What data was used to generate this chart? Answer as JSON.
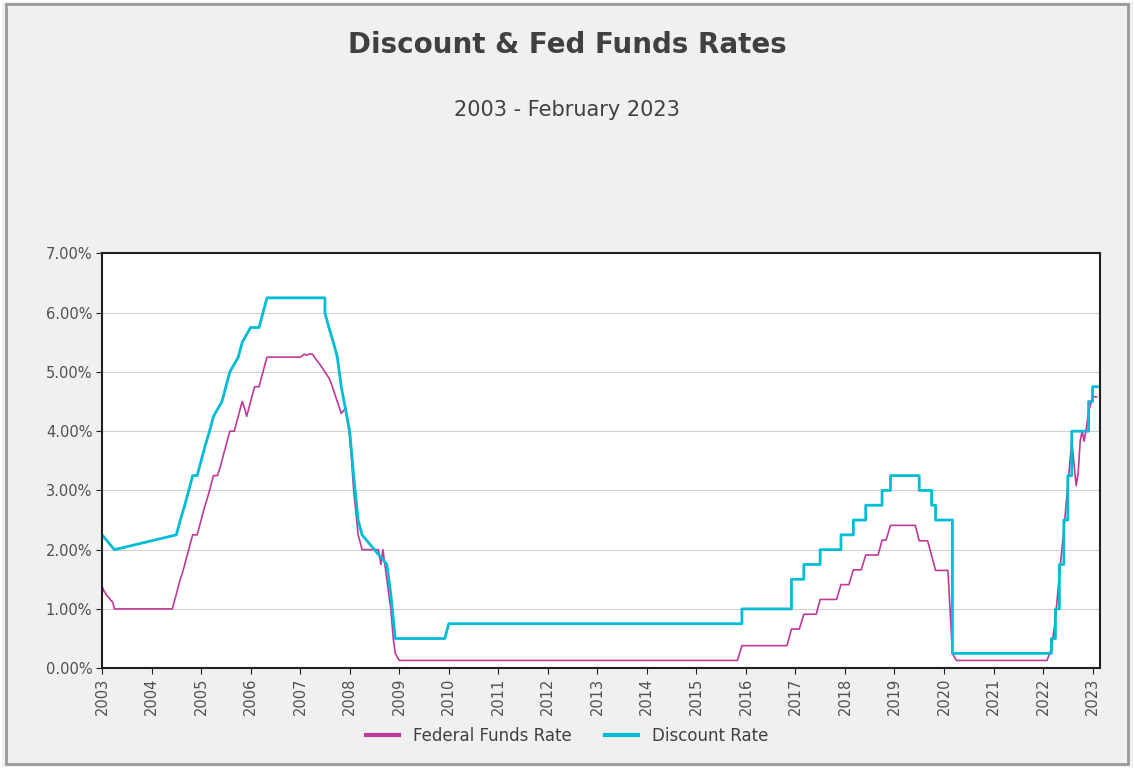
{
  "title": "Discount & Fed Funds Rates",
  "subtitle": "2003 - February 2023",
  "title_color": "#404040",
  "background_color": "#f0f0f0",
  "plot_background": "#ffffff",
  "outer_border_color": "#999999",
  "fed_funds_color": "#c0399a",
  "discount_color": "#00bcd4",
  "fed_funds_label": "Federal Funds Rate",
  "discount_label": "Discount Rate",
  "ylim": [
    0.0,
    0.07
  ],
  "yticks": [
    0.0,
    0.01,
    0.02,
    0.03,
    0.04,
    0.05,
    0.06,
    0.07
  ],
  "ytick_labels": [
    "0.00%",
    "1.00%",
    "2.00%",
    "3.00%",
    "4.00%",
    "5.00%",
    "6.00%",
    "7.00%"
  ],
  "xtick_years": [
    2003,
    2004,
    2005,
    2006,
    2007,
    2008,
    2009,
    2010,
    2011,
    2012,
    2013,
    2014,
    2015,
    2016,
    2017,
    2018,
    2019,
    2020,
    2021,
    2022,
    2023
  ],
  "fed_funds_data": [
    [
      2003.0,
      0.0125
    ],
    [
      2003.02,
      0.0135
    ],
    [
      2003.04,
      0.013
    ],
    [
      2003.06,
      0.0128
    ],
    [
      2003.08,
      0.0125
    ],
    [
      2003.1,
      0.0122
    ],
    [
      2003.13,
      0.012
    ],
    [
      2003.15,
      0.0118
    ],
    [
      2003.17,
      0.0115
    ],
    [
      2003.2,
      0.0113
    ],
    [
      2003.22,
      0.011
    ],
    [
      2003.25,
      0.01
    ],
    [
      2003.27,
      0.01
    ],
    [
      2003.29,
      0.01
    ],
    [
      2003.33,
      0.01
    ],
    [
      2003.38,
      0.01
    ],
    [
      2003.42,
      0.01
    ],
    [
      2003.46,
      0.01
    ],
    [
      2003.5,
      0.01
    ],
    [
      2003.54,
      0.01
    ],
    [
      2003.58,
      0.01
    ],
    [
      2003.62,
      0.01
    ],
    [
      2003.67,
      0.01
    ],
    [
      2003.71,
      0.01
    ],
    [
      2003.75,
      0.01
    ],
    [
      2003.79,
      0.01
    ],
    [
      2003.83,
      0.01
    ],
    [
      2003.88,
      0.01
    ],
    [
      2003.92,
      0.01
    ],
    [
      2003.96,
      0.01
    ],
    [
      2004.0,
      0.01
    ],
    [
      2004.04,
      0.01
    ],
    [
      2004.08,
      0.01
    ],
    [
      2004.13,
      0.01
    ],
    [
      2004.17,
      0.01
    ],
    [
      2004.21,
      0.01
    ],
    [
      2004.25,
      0.01
    ],
    [
      2004.29,
      0.01
    ],
    [
      2004.33,
      0.01
    ],
    [
      2004.38,
      0.01
    ],
    [
      2004.42,
      0.01
    ],
    [
      2004.46,
      0.0113
    ],
    [
      2004.5,
      0.0125
    ],
    [
      2004.54,
      0.0138
    ],
    [
      2004.58,
      0.015
    ],
    [
      2004.63,
      0.0163
    ],
    [
      2004.67,
      0.0175
    ],
    [
      2004.71,
      0.0188
    ],
    [
      2004.75,
      0.02
    ],
    [
      2004.79,
      0.0213
    ],
    [
      2004.83,
      0.0225
    ],
    [
      2004.88,
      0.0225
    ],
    [
      2004.92,
      0.0225
    ],
    [
      2005.0,
      0.025
    ],
    [
      2005.04,
      0.0263
    ],
    [
      2005.08,
      0.0275
    ],
    [
      2005.13,
      0.0288
    ],
    [
      2005.17,
      0.03
    ],
    [
      2005.21,
      0.0313
    ],
    [
      2005.25,
      0.0325
    ],
    [
      2005.29,
      0.0325
    ],
    [
      2005.33,
      0.0325
    ],
    [
      2005.38,
      0.0338
    ],
    [
      2005.42,
      0.035
    ],
    [
      2005.46,
      0.0363
    ],
    [
      2005.5,
      0.0375
    ],
    [
      2005.54,
      0.0388
    ],
    [
      2005.58,
      0.04
    ],
    [
      2005.63,
      0.04
    ],
    [
      2005.67,
      0.04
    ],
    [
      2005.71,
      0.0413
    ],
    [
      2005.75,
      0.0425
    ],
    [
      2005.79,
      0.0438
    ],
    [
      2005.83,
      0.045
    ],
    [
      2005.88,
      0.0438
    ],
    [
      2005.92,
      0.0425
    ],
    [
      2006.0,
      0.045
    ],
    [
      2006.04,
      0.0463
    ],
    [
      2006.08,
      0.0475
    ],
    [
      2006.13,
      0.0475
    ],
    [
      2006.17,
      0.0475
    ],
    [
      2006.21,
      0.0488
    ],
    [
      2006.25,
      0.05
    ],
    [
      2006.29,
      0.0513
    ],
    [
      2006.33,
      0.0525
    ],
    [
      2006.38,
      0.0525
    ],
    [
      2006.42,
      0.0525
    ],
    [
      2006.46,
      0.0525
    ],
    [
      2006.5,
      0.0525
    ],
    [
      2006.54,
      0.0525
    ],
    [
      2006.58,
      0.0525
    ],
    [
      2006.63,
      0.0525
    ],
    [
      2006.67,
      0.0525
    ],
    [
      2006.71,
      0.0525
    ],
    [
      2006.75,
      0.0525
    ],
    [
      2006.79,
      0.0525
    ],
    [
      2006.83,
      0.0525
    ],
    [
      2006.88,
      0.0525
    ],
    [
      2006.92,
      0.0525
    ],
    [
      2007.0,
      0.0525
    ],
    [
      2007.04,
      0.0527
    ],
    [
      2007.08,
      0.053
    ],
    [
      2007.13,
      0.0528
    ],
    [
      2007.17,
      0.053
    ],
    [
      2007.21,
      0.053
    ],
    [
      2007.25,
      0.053
    ],
    [
      2007.29,
      0.0525
    ],
    [
      2007.33,
      0.052
    ],
    [
      2007.38,
      0.0515
    ],
    [
      2007.42,
      0.051
    ],
    [
      2007.46,
      0.0505
    ],
    [
      2007.5,
      0.05
    ],
    [
      2007.54,
      0.0495
    ],
    [
      2007.58,
      0.049
    ],
    [
      2007.63,
      0.048
    ],
    [
      2007.67,
      0.047
    ],
    [
      2007.71,
      0.046
    ],
    [
      2007.75,
      0.045
    ],
    [
      2007.79,
      0.044
    ],
    [
      2007.83,
      0.043
    ],
    [
      2007.88,
      0.0435
    ],
    [
      2007.92,
      0.044
    ],
    [
      2008.0,
      0.039
    ],
    [
      2008.04,
      0.035
    ],
    [
      2008.08,
      0.03
    ],
    [
      2008.13,
      0.026
    ],
    [
      2008.17,
      0.0225
    ],
    [
      2008.21,
      0.0213
    ],
    [
      2008.25,
      0.02
    ],
    [
      2008.29,
      0.02
    ],
    [
      2008.33,
      0.02
    ],
    [
      2008.38,
      0.02
    ],
    [
      2008.42,
      0.02
    ],
    [
      2008.46,
      0.02
    ],
    [
      2008.5,
      0.02
    ],
    [
      2008.54,
      0.02
    ],
    [
      2008.58,
      0.02
    ],
    [
      2008.63,
      0.0175
    ],
    [
      2008.67,
      0.02
    ],
    [
      2008.71,
      0.0175
    ],
    [
      2008.75,
      0.015
    ],
    [
      2008.79,
      0.0125
    ],
    [
      2008.83,
      0.01
    ],
    [
      2008.88,
      0.005
    ],
    [
      2008.92,
      0.0025
    ],
    [
      2009.0,
      0.0013
    ],
    [
      2009.08,
      0.0013
    ],
    [
      2009.17,
      0.0013
    ],
    [
      2009.25,
      0.0013
    ],
    [
      2009.33,
      0.0013
    ],
    [
      2009.42,
      0.0013
    ],
    [
      2009.5,
      0.0013
    ],
    [
      2009.58,
      0.0013
    ],
    [
      2009.67,
      0.0013
    ],
    [
      2009.75,
      0.0013
    ],
    [
      2009.83,
      0.0013
    ],
    [
      2009.92,
      0.0013
    ],
    [
      2010.0,
      0.0013
    ],
    [
      2010.08,
      0.0013
    ],
    [
      2010.17,
      0.0013
    ],
    [
      2010.25,
      0.0013
    ],
    [
      2010.33,
      0.0013
    ],
    [
      2010.42,
      0.0013
    ],
    [
      2010.5,
      0.0013
    ],
    [
      2010.58,
      0.0013
    ],
    [
      2010.67,
      0.0013
    ],
    [
      2010.75,
      0.0013
    ],
    [
      2010.83,
      0.0013
    ],
    [
      2010.92,
      0.0013
    ],
    [
      2011.0,
      0.0013
    ],
    [
      2011.08,
      0.0013
    ],
    [
      2011.17,
      0.0013
    ],
    [
      2011.25,
      0.0013
    ],
    [
      2011.33,
      0.0013
    ],
    [
      2011.42,
      0.0013
    ],
    [
      2011.5,
      0.0013
    ],
    [
      2011.58,
      0.0013
    ],
    [
      2011.67,
      0.0013
    ],
    [
      2011.75,
      0.0013
    ],
    [
      2011.83,
      0.0013
    ],
    [
      2011.92,
      0.0013
    ],
    [
      2012.0,
      0.0013
    ],
    [
      2012.08,
      0.0013
    ],
    [
      2012.17,
      0.0013
    ],
    [
      2012.25,
      0.0013
    ],
    [
      2012.33,
      0.0013
    ],
    [
      2012.42,
      0.0013
    ],
    [
      2012.5,
      0.0013
    ],
    [
      2012.58,
      0.0013
    ],
    [
      2012.67,
      0.0013
    ],
    [
      2012.75,
      0.0013
    ],
    [
      2012.83,
      0.0013
    ],
    [
      2012.92,
      0.0013
    ],
    [
      2013.0,
      0.0013
    ],
    [
      2013.08,
      0.0013
    ],
    [
      2013.17,
      0.0013
    ],
    [
      2013.25,
      0.0013
    ],
    [
      2013.33,
      0.0013
    ],
    [
      2013.42,
      0.0013
    ],
    [
      2013.5,
      0.0013
    ],
    [
      2013.58,
      0.0013
    ],
    [
      2013.67,
      0.0013
    ],
    [
      2013.75,
      0.0013
    ],
    [
      2013.83,
      0.0013
    ],
    [
      2013.92,
      0.0013
    ],
    [
      2014.0,
      0.0013
    ],
    [
      2014.08,
      0.0013
    ],
    [
      2014.17,
      0.0013
    ],
    [
      2014.25,
      0.0013
    ],
    [
      2014.33,
      0.0013
    ],
    [
      2014.42,
      0.0013
    ],
    [
      2014.5,
      0.0013
    ],
    [
      2014.58,
      0.0013
    ],
    [
      2014.67,
      0.0013
    ],
    [
      2014.75,
      0.0013
    ],
    [
      2014.83,
      0.0013
    ],
    [
      2014.92,
      0.0013
    ],
    [
      2015.0,
      0.0013
    ],
    [
      2015.08,
      0.0013
    ],
    [
      2015.17,
      0.0013
    ],
    [
      2015.25,
      0.0013
    ],
    [
      2015.33,
      0.0013
    ],
    [
      2015.42,
      0.0013
    ],
    [
      2015.5,
      0.0013
    ],
    [
      2015.58,
      0.0013
    ],
    [
      2015.67,
      0.0013
    ],
    [
      2015.75,
      0.0013
    ],
    [
      2015.83,
      0.0013
    ],
    [
      2015.92,
      0.0038
    ],
    [
      2016.0,
      0.0038
    ],
    [
      2016.08,
      0.0038
    ],
    [
      2016.17,
      0.0038
    ],
    [
      2016.25,
      0.0038
    ],
    [
      2016.33,
      0.0038
    ],
    [
      2016.42,
      0.0038
    ],
    [
      2016.5,
      0.0038
    ],
    [
      2016.58,
      0.0038
    ],
    [
      2016.67,
      0.0038
    ],
    [
      2016.75,
      0.0038
    ],
    [
      2016.83,
      0.0038
    ],
    [
      2016.92,
      0.0066
    ],
    [
      2017.0,
      0.0066
    ],
    [
      2017.08,
      0.0066
    ],
    [
      2017.17,
      0.0091
    ],
    [
      2017.25,
      0.0091
    ],
    [
      2017.33,
      0.0091
    ],
    [
      2017.42,
      0.0091
    ],
    [
      2017.5,
      0.0116
    ],
    [
      2017.58,
      0.0116
    ],
    [
      2017.67,
      0.0116
    ],
    [
      2017.75,
      0.0116
    ],
    [
      2017.83,
      0.0116
    ],
    [
      2017.92,
      0.0141
    ],
    [
      2018.0,
      0.0141
    ],
    [
      2018.08,
      0.0141
    ],
    [
      2018.17,
      0.0166
    ],
    [
      2018.25,
      0.0166
    ],
    [
      2018.33,
      0.0166
    ],
    [
      2018.42,
      0.0191
    ],
    [
      2018.5,
      0.0191
    ],
    [
      2018.58,
      0.0191
    ],
    [
      2018.67,
      0.0191
    ],
    [
      2018.75,
      0.0216
    ],
    [
      2018.83,
      0.0216
    ],
    [
      2018.92,
      0.0241
    ],
    [
      2019.0,
      0.0241
    ],
    [
      2019.08,
      0.0241
    ],
    [
      2019.17,
      0.0241
    ],
    [
      2019.25,
      0.0241
    ],
    [
      2019.33,
      0.0241
    ],
    [
      2019.42,
      0.0241
    ],
    [
      2019.5,
      0.0215
    ],
    [
      2019.58,
      0.0215
    ],
    [
      2019.67,
      0.0215
    ],
    [
      2019.75,
      0.019
    ],
    [
      2019.83,
      0.0165
    ],
    [
      2019.92,
      0.0165
    ],
    [
      2020.0,
      0.0165
    ],
    [
      2020.08,
      0.0165
    ],
    [
      2020.17,
      0.0025
    ],
    [
      2020.25,
      0.0013
    ],
    [
      2020.33,
      0.0013
    ],
    [
      2020.42,
      0.0013
    ],
    [
      2020.5,
      0.0013
    ],
    [
      2020.58,
      0.0013
    ],
    [
      2020.67,
      0.0013
    ],
    [
      2020.75,
      0.0013
    ],
    [
      2020.83,
      0.0013
    ],
    [
      2020.92,
      0.0013
    ],
    [
      2021.0,
      0.0013
    ],
    [
      2021.08,
      0.0013
    ],
    [
      2021.17,
      0.0013
    ],
    [
      2021.25,
      0.0013
    ],
    [
      2021.33,
      0.0013
    ],
    [
      2021.42,
      0.0013
    ],
    [
      2021.5,
      0.0013
    ],
    [
      2021.58,
      0.0013
    ],
    [
      2021.67,
      0.0013
    ],
    [
      2021.75,
      0.0013
    ],
    [
      2021.83,
      0.0013
    ],
    [
      2021.92,
      0.0013
    ],
    [
      2022.0,
      0.0013
    ],
    [
      2022.08,
      0.0013
    ],
    [
      2022.17,
      0.0033
    ],
    [
      2022.25,
      0.0083
    ],
    [
      2022.33,
      0.0158
    ],
    [
      2022.42,
      0.0233
    ],
    [
      2022.5,
      0.0308
    ],
    [
      2022.58,
      0.0383
    ],
    [
      2022.67,
      0.0308
    ],
    [
      2022.71,
      0.033
    ],
    [
      2022.75,
      0.0383
    ],
    [
      2022.79,
      0.04
    ],
    [
      2022.83,
      0.0383
    ],
    [
      2022.88,
      0.0408
    ],
    [
      2022.92,
      0.0433
    ],
    [
      2023.0,
      0.0458
    ],
    [
      2023.08,
      0.0458
    ]
  ],
  "discount_data": [
    [
      2003.0,
      0.0225
    ],
    [
      2003.25,
      0.02
    ],
    [
      2003.25,
      0.02
    ],
    [
      2004.5,
      0.0225
    ],
    [
      2004.58,
      0.025
    ],
    [
      2004.67,
      0.0275
    ],
    [
      2004.75,
      0.03
    ],
    [
      2004.83,
      0.0325
    ],
    [
      2004.92,
      0.0325
    ],
    [
      2005.0,
      0.035
    ],
    [
      2005.08,
      0.0375
    ],
    [
      2005.17,
      0.04
    ],
    [
      2005.25,
      0.0425
    ],
    [
      2005.42,
      0.045
    ],
    [
      2005.5,
      0.0475
    ],
    [
      2005.58,
      0.05
    ],
    [
      2005.75,
      0.0525
    ],
    [
      2005.83,
      0.055
    ],
    [
      2006.0,
      0.0575
    ],
    [
      2006.08,
      0.0575
    ],
    [
      2006.17,
      0.0575
    ],
    [
      2006.25,
      0.06
    ],
    [
      2006.33,
      0.0625
    ],
    [
      2007.5,
      0.0625
    ],
    [
      2007.5,
      0.06
    ],
    [
      2007.58,
      0.0575
    ],
    [
      2007.67,
      0.055
    ],
    [
      2007.75,
      0.0525
    ],
    [
      2007.83,
      0.0475
    ],
    [
      2008.0,
      0.04
    ],
    [
      2008.08,
      0.0325
    ],
    [
      2008.17,
      0.025
    ],
    [
      2008.25,
      0.0225
    ],
    [
      2008.75,
      0.0175
    ],
    [
      2008.83,
      0.0125
    ],
    [
      2008.92,
      0.005
    ],
    [
      2009.0,
      0.005
    ],
    [
      2009.92,
      0.005
    ],
    [
      2010.0,
      0.0075
    ],
    [
      2015.92,
      0.0075
    ],
    [
      2015.92,
      0.01
    ],
    [
      2016.92,
      0.01
    ],
    [
      2016.92,
      0.015
    ],
    [
      2017.17,
      0.015
    ],
    [
      2017.17,
      0.0175
    ],
    [
      2017.5,
      0.0175
    ],
    [
      2017.5,
      0.02
    ],
    [
      2017.92,
      0.02
    ],
    [
      2017.92,
      0.0225
    ],
    [
      2018.17,
      0.0225
    ],
    [
      2018.17,
      0.025
    ],
    [
      2018.42,
      0.025
    ],
    [
      2018.42,
      0.0275
    ],
    [
      2018.75,
      0.0275
    ],
    [
      2018.75,
      0.03
    ],
    [
      2018.92,
      0.03
    ],
    [
      2018.92,
      0.0325
    ],
    [
      2019.5,
      0.0325
    ],
    [
      2019.5,
      0.03
    ],
    [
      2019.75,
      0.03
    ],
    [
      2019.75,
      0.0275
    ],
    [
      2019.83,
      0.0275
    ],
    [
      2019.83,
      0.025
    ],
    [
      2020.17,
      0.025
    ],
    [
      2020.17,
      0.0025
    ],
    [
      2021.92,
      0.0025
    ],
    [
      2021.92,
      0.0025
    ],
    [
      2022.0,
      0.0025
    ],
    [
      2022.0,
      0.0025
    ],
    [
      2022.17,
      0.0025
    ],
    [
      2022.17,
      0.005
    ],
    [
      2022.25,
      0.005
    ],
    [
      2022.25,
      0.01
    ],
    [
      2022.33,
      0.01
    ],
    [
      2022.33,
      0.0175
    ],
    [
      2022.42,
      0.0175
    ],
    [
      2022.42,
      0.025
    ],
    [
      2022.5,
      0.025
    ],
    [
      2022.5,
      0.0325
    ],
    [
      2022.58,
      0.0325
    ],
    [
      2022.58,
      0.04
    ],
    [
      2022.92,
      0.04
    ],
    [
      2022.92,
      0.045
    ],
    [
      2023.0,
      0.045
    ],
    [
      2023.0,
      0.0475
    ],
    [
      2023.1,
      0.0475
    ]
  ]
}
